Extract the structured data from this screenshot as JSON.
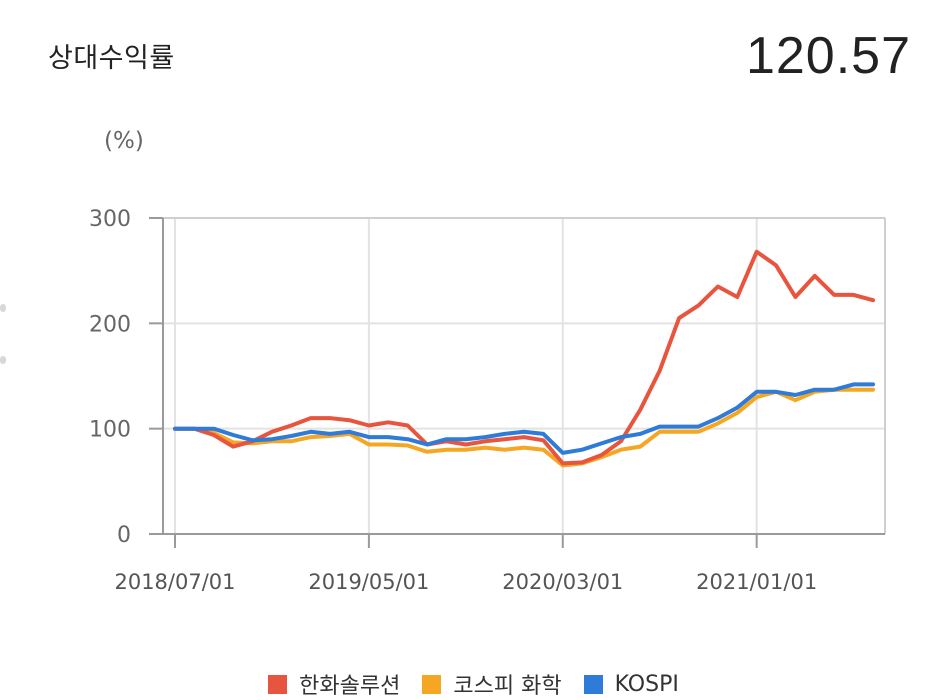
{
  "header": {
    "title": "상대수익률",
    "value": "120.57"
  },
  "chart_data": {
    "type": "line",
    "ylabel": "(%)",
    "ylim": [
      0,
      300
    ],
    "yticks": [
      "0",
      "100",
      "200",
      "300"
    ],
    "xtick_labels": [
      "2018/07/01",
      "2019/05/01",
      "2020/03/01",
      "2021/01/01"
    ],
    "xtick_months": [
      0,
      10,
      20,
      30
    ],
    "xlim": [
      0,
      36
    ],
    "grid": true,
    "legend_position": "bottom",
    "series": [
      {
        "name": "한화솔루션",
        "color": "#e8553e",
        "values": [
          100,
          100,
          94,
          83,
          88,
          97,
          103,
          110,
          110,
          108,
          103,
          106,
          103,
          85,
          88,
          85,
          88,
          90,
          92,
          89,
          67,
          68,
          75,
          88,
          118,
          155,
          205,
          217,
          235,
          225,
          268,
          255,
          225,
          245,
          227,
          227,
          222
        ]
      },
      {
        "name": "코스피 화학",
        "color": "#f5a623",
        "values": [
          100,
          100,
          96,
          87,
          86,
          88,
          88,
          92,
          93,
          95,
          85,
          85,
          84,
          78,
          80,
          80,
          82,
          80,
          82,
          80,
          65,
          67,
          73,
          80,
          83,
          97,
          97,
          97,
          105,
          115,
          130,
          135,
          127,
          135,
          137,
          137,
          137
        ]
      },
      {
        "name": "KOSPI",
        "color": "#2f7bd8",
        "values": [
          100,
          100,
          100,
          94,
          89,
          90,
          93,
          97,
          95,
          97,
          92,
          92,
          90,
          85,
          90,
          90,
          92,
          95,
          97,
          95,
          77,
          80,
          86,
          92,
          95,
          102,
          102,
          102,
          110,
          120,
          135,
          135,
          132,
          137,
          137,
          142,
          142
        ]
      }
    ]
  }
}
